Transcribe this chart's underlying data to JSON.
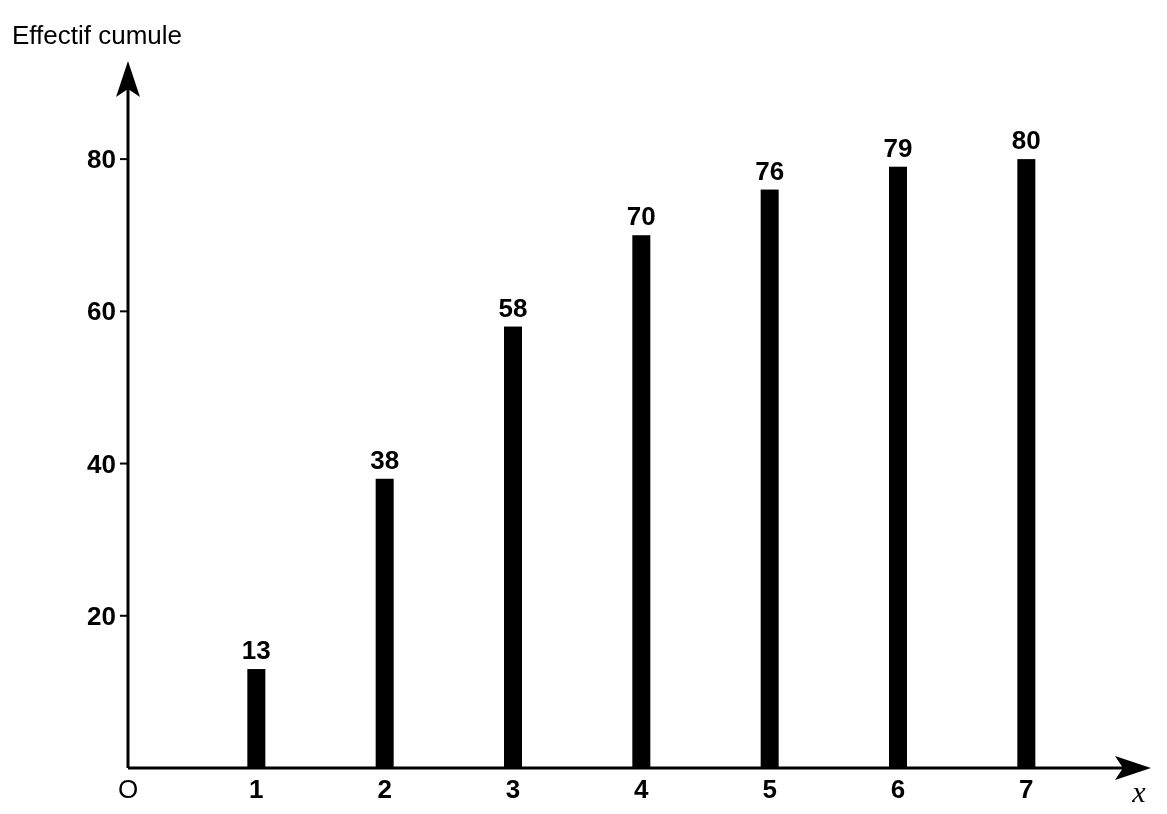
{
  "chart_data": {
    "type": "bar",
    "ylabel": "Effectif cumule",
    "xlabel": "x",
    "x": [
      1,
      2,
      3,
      4,
      5,
      6,
      7
    ],
    "values": [
      13,
      38,
      58,
      70,
      76,
      79,
      80
    ],
    "color": "#000000",
    "data_labels": true,
    "xlim": [
      0,
      7.8
    ],
    "xticks": [
      {
        "value": 0,
        "label": "O"
      },
      1,
      2,
      3,
      4,
      5,
      6,
      7
    ],
    "ylim": [
      0,
      90
    ],
    "yticks": [
      20,
      40,
      60,
      80
    ],
    "grid": false
  }
}
